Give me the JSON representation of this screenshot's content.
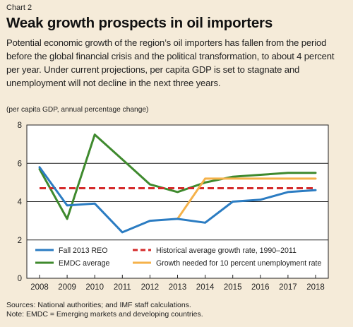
{
  "header": {
    "chart_label": "Chart 2",
    "title": "Weak growth prospects in oil importers",
    "description": "Potential economic growth of the region’s oil importers has fallen from the period before the global financial crisis and the political transformation, to about 4 percent per year. Under current projections, per capita GDP is set to stagnate and unemployment will not decline in the next three years.",
    "units": "(per capita GDP, annual percentage change)"
  },
  "footer": {
    "sources": "Sources: National authorities; and IMF staff calculations.",
    "note": "Note: EMDC = Emerging markets and developing countries."
  },
  "chart_data": {
    "type": "line",
    "x": [
      2008,
      2009,
      2010,
      2011,
      2012,
      2013,
      2014,
      2015,
      2016,
      2017,
      2018
    ],
    "xlim": [
      2008,
      2018
    ],
    "ylim": [
      0,
      8
    ],
    "yticks": [
      0,
      2,
      4,
      6,
      8
    ],
    "grid": true,
    "legend_placement": "bottom",
    "series": [
      {
        "name": "Fall 2013 REO",
        "color": "#2b7cc2",
        "style": "solid",
        "x": [
          2008,
          2009,
          2010,
          2011,
          2012,
          2013,
          2014,
          2015,
          2016,
          2017,
          2018
        ],
        "values": [
          5.8,
          3.8,
          3.9,
          2.4,
          3.0,
          3.1,
          2.9,
          4.0,
          4.1,
          4.5,
          4.6
        ]
      },
      {
        "name": "EMDC average",
        "color": "#3f8a2e",
        "style": "solid",
        "x": [
          2008,
          2009,
          2010,
          2011,
          2012,
          2013,
          2014,
          2015,
          2016,
          2017,
          2018
        ],
        "values": [
          5.7,
          3.1,
          7.5,
          6.2,
          4.9,
          4.5,
          5.0,
          5.3,
          5.4,
          5.5,
          5.5
        ]
      },
      {
        "name": "Historical average growth rate, 1990–2011",
        "color": "#d42a2a",
        "style": "dashed",
        "x": [
          2008,
          2018
        ],
        "values": [
          4.7,
          4.7
        ]
      },
      {
        "name": "Growth needed for 10 percent unemployment rate",
        "color": "#f5b24a",
        "style": "solid",
        "x": [
          2013,
          2014,
          2015,
          2016,
          2017,
          2018
        ],
        "values": [
          3.1,
          5.2,
          5.2,
          5.2,
          5.2,
          5.2
        ]
      }
    ]
  }
}
